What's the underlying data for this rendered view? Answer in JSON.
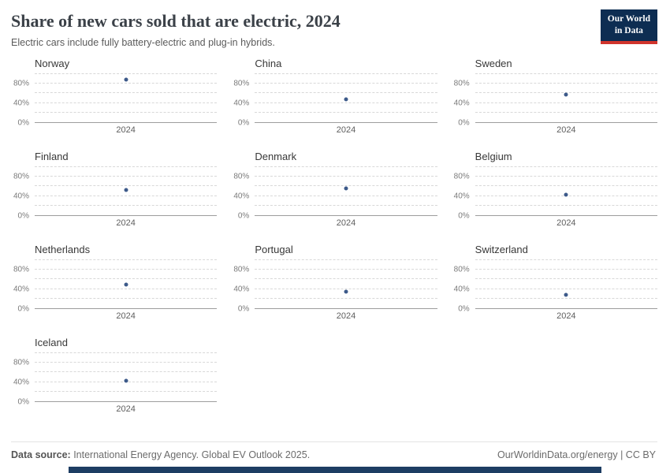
{
  "header": {
    "title": "Share of new cars sold that are electric, 2024",
    "subtitle": "Electric cars include fully battery-electric and plug-in hybrids.",
    "logo": {
      "line1": "Our World",
      "line2": "in Data",
      "bg_color": "#0d2d52",
      "accent_color": "#d0342c"
    }
  },
  "chart_data": {
    "type": "scatter",
    "layout": "small-multiples-grid-3col",
    "x_tick_label": "2024",
    "ylim": [
      0,
      100
    ],
    "y_ticks": [
      {
        "value": 0,
        "label": "0%"
      },
      {
        "value": 40,
        "label": "40%"
      },
      {
        "value": 80,
        "label": "80%"
      }
    ],
    "gridline_values": [
      20,
      40,
      60,
      80,
      100
    ],
    "grid": "dashed",
    "point_color": "#3d5a8a",
    "series": [
      {
        "name": "Norway",
        "x": 2024,
        "value": 89
      },
      {
        "name": "China",
        "x": 2024,
        "value": 48
      },
      {
        "name": "Sweden",
        "x": 2024,
        "value": 58
      },
      {
        "name": "Finland",
        "x": 2024,
        "value": 52
      },
      {
        "name": "Denmark",
        "x": 2024,
        "value": 56
      },
      {
        "name": "Belgium",
        "x": 2024,
        "value": 43
      },
      {
        "name": "Netherlands",
        "x": 2024,
        "value": 49
      },
      {
        "name": "Portugal",
        "x": 2024,
        "value": 34
      },
      {
        "name": "Switzerland",
        "x": 2024,
        "value": 28
      },
      {
        "name": "Iceland",
        "x": 2024,
        "value": 42
      }
    ]
  },
  "footer": {
    "source_label": "Data source:",
    "source_text": " International Energy Agency. Global EV Outlook 2025.",
    "credit": "OurWorldinData.org/energy | CC BY"
  },
  "colors": {
    "bottom_bar": "#1d3d63",
    "title_text": "#3b4148"
  }
}
